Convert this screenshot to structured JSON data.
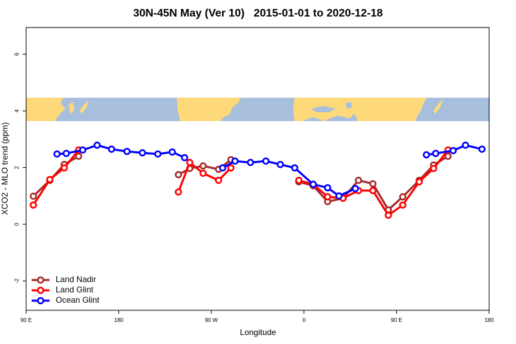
{
  "chart_data": {
    "type": "line",
    "title": "30N-45N May (Ver 10)   2015-01-01 to 2020-12-18",
    "xlabel": "Longitude",
    "ylabel": "XCO2 - MLO trend (ppm)",
    "xlim": [
      90,
      540
    ],
    "xticks": [
      {
        "value": 90,
        "label": "90 E"
      },
      {
        "value": 180,
        "label": "180"
      },
      {
        "value": 270,
        "label": "90 W"
      },
      {
        "value": 360,
        "label": "0"
      },
      {
        "value": 450,
        "label": "90 E"
      },
      {
        "value": 540,
        "label": "180"
      }
    ],
    "ylim": [
      -3,
      7
    ],
    "yticks": [
      -2,
      0,
      2,
      4,
      6
    ],
    "legend": "bottom-left",
    "series": [
      {
        "name": "Land Nadir",
        "color": "#a52a2a",
        "x": [
          97,
          113,
          127,
          141,
          null,
          238,
          249,
          262,
          277,
          289,
          null,
          355,
          369,
          383,
          398,
          413,
          427,
          442,
          456,
          472,
          486,
          500
        ],
        "values": [
          0.99,
          1.55,
          2.11,
          2.4,
          null,
          1.75,
          1.97,
          2.06,
          1.94,
          2.28,
          null,
          1.5,
          1.36,
          0.8,
          0.92,
          1.55,
          1.43,
          0.51,
          0.97,
          1.55,
          2.09,
          2.4
        ]
      },
      {
        "name": "Land Glint",
        "color": "#ff0000",
        "x": [
          97,
          113,
          127,
          141,
          null,
          238,
          249,
          262,
          277,
          289,
          null,
          355,
          369,
          383,
          398,
          413,
          427,
          442,
          456,
          472,
          486,
          500
        ],
        "values": [
          0.68,
          1.58,
          1.99,
          2.62,
          null,
          1.14,
          2.18,
          1.8,
          1.55,
          1.99,
          null,
          1.55,
          1.41,
          0.97,
          0.92,
          1.19,
          1.19,
          0.32,
          0.68,
          1.5,
          1.97,
          2.62
        ]
      },
      {
        "name": "Ocean Glint",
        "color": "#0000ff",
        "x": [
          120,
          129,
          145,
          159,
          173,
          188,
          203,
          218,
          232,
          244,
          null,
          281,
          293,
          308,
          323,
          337,
          351,
          369,
          383,
          394,
          410,
          null,
          479,
          488,
          505,
          517,
          533
        ],
        "values": [
          2.48,
          2.5,
          2.62,
          2.79,
          2.65,
          2.57,
          2.52,
          2.48,
          2.55,
          2.35,
          null,
          1.99,
          2.23,
          2.18,
          2.23,
          2.11,
          1.99,
          1.41,
          1.29,
          1.0,
          1.26,
          null,
          2.45,
          2.5,
          2.6,
          2.79,
          2.65
        ]
      }
    ]
  }
}
